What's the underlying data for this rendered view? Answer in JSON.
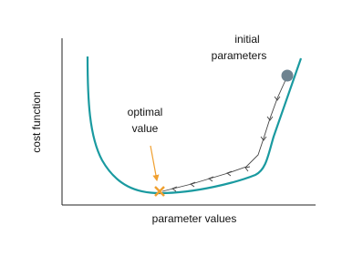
{
  "axes": {
    "y_label": "cost function",
    "x_label": "parameter values"
  },
  "annotations": [
    {
      "lines": [
        "initial",
        "parameters"
      ]
    },
    {
      "lines": [
        "optimal",
        "value"
      ]
    }
  ]
}
